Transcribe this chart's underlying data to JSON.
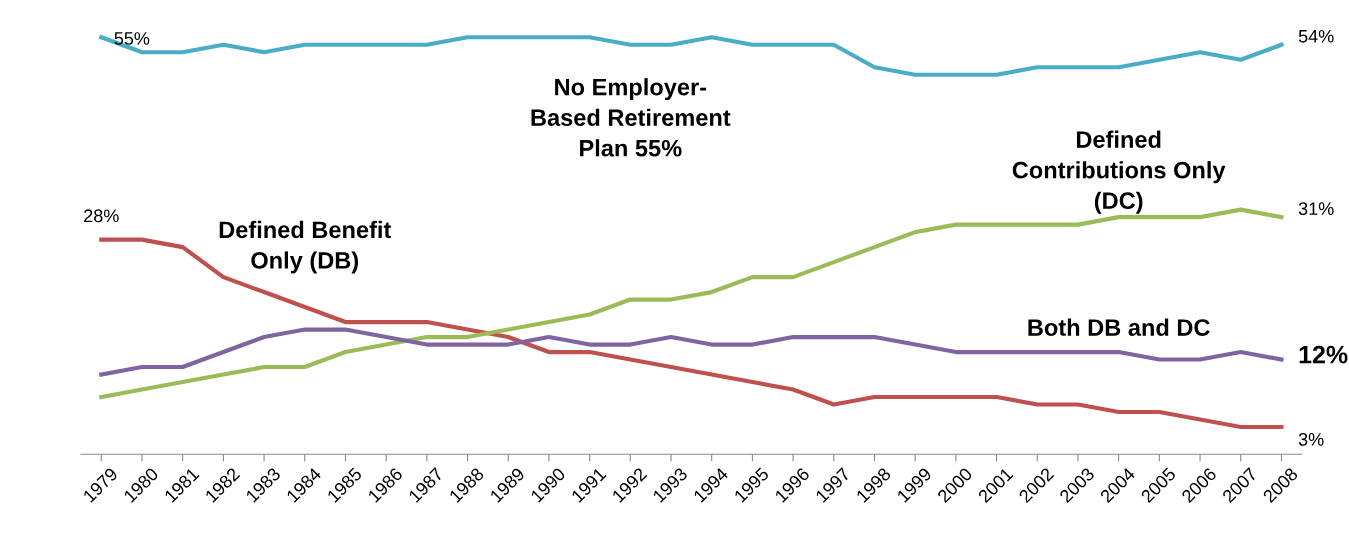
{
  "chart_data": {
    "type": "line",
    "categories": [
      "1979",
      "1980",
      "1981",
      "1982",
      "1983",
      "1984",
      "1985",
      "1986",
      "1987",
      "1988",
      "1989",
      "1990",
      "1991",
      "1992",
      "1993",
      "1994",
      "1995",
      "1996",
      "1997",
      "1998",
      "1999",
      "2000",
      "2001",
      "2002",
      "2003",
      "2004",
      "2005",
      "2006",
      "2007",
      "2008"
    ],
    "series": [
      {
        "name": "No Employer-\nBased Retirement\nPlan 55%",
        "color": "#4bacc6",
        "values": [
          55,
          53,
          53,
          54,
          53,
          54,
          54,
          54,
          54,
          55,
          55,
          55,
          55,
          54,
          54,
          55,
          54,
          54,
          54,
          51,
          50,
          50,
          50,
          51,
          51,
          51,
          52,
          53,
          52,
          54
        ],
        "value_labels": [
          "55%",
          null,
          null,
          null,
          null,
          null,
          null,
          null,
          null,
          null,
          null,
          null,
          null,
          null,
          null,
          null,
          null,
          null,
          null,
          null,
          null,
          null,
          null,
          null,
          null,
          null,
          null,
          null,
          null,
          "54%"
        ]
      },
      {
        "name": "Defined Benefit\nOnly (DB)",
        "color": "#c0504d",
        "values": [
          28,
          28,
          27,
          23,
          21,
          19,
          17,
          17,
          17,
          16,
          15,
          13,
          13,
          12,
          11,
          10,
          9,
          8,
          6,
          7,
          7,
          7,
          7,
          6,
          6,
          5,
          5,
          4,
          3,
          3
        ],
        "value_labels": [
          "28%",
          null,
          null,
          null,
          null,
          null,
          null,
          null,
          null,
          null,
          null,
          null,
          null,
          null,
          null,
          null,
          null,
          null,
          null,
          null,
          null,
          null,
          null,
          null,
          null,
          null,
          null,
          null,
          null,
          "3%"
        ]
      },
      {
        "name": "Defined\nContributions Only\n(DC)",
        "color": "#9bbb59",
        "values": [
          7,
          8,
          9,
          10,
          11,
          11,
          13,
          14,
          15,
          15,
          16,
          17,
          18,
          20,
          20,
          21,
          23,
          23,
          25,
          27,
          29,
          30,
          30,
          30,
          30,
          31,
          31,
          31,
          32,
          31
        ],
        "value_labels": [
          null,
          null,
          null,
          null,
          null,
          null,
          null,
          null,
          null,
          null,
          null,
          null,
          null,
          null,
          null,
          null,
          null,
          null,
          null,
          null,
          null,
          null,
          null,
          null,
          null,
          null,
          null,
          null,
          null,
          "31%"
        ]
      },
      {
        "name": "Both DB and DC",
        "color": "#8064a2",
        "values": [
          10,
          11,
          11,
          13,
          15,
          16,
          16,
          15,
          14,
          14,
          14,
          15,
          14,
          14,
          15,
          14,
          14,
          15,
          15,
          15,
          14,
          13,
          13,
          13,
          13,
          13,
          12,
          12,
          13,
          12
        ],
        "value_labels": [
          null,
          null,
          null,
          null,
          null,
          null,
          null,
          null,
          null,
          null,
          null,
          null,
          null,
          null,
          null,
          null,
          null,
          null,
          null,
          null,
          null,
          null,
          null,
          null,
          null,
          null,
          null,
          null,
          null,
          "12%"
        ]
      }
    ],
    "grid": false,
    "legend": false,
    "marker": "none",
    "line_style": "solid"
  }
}
